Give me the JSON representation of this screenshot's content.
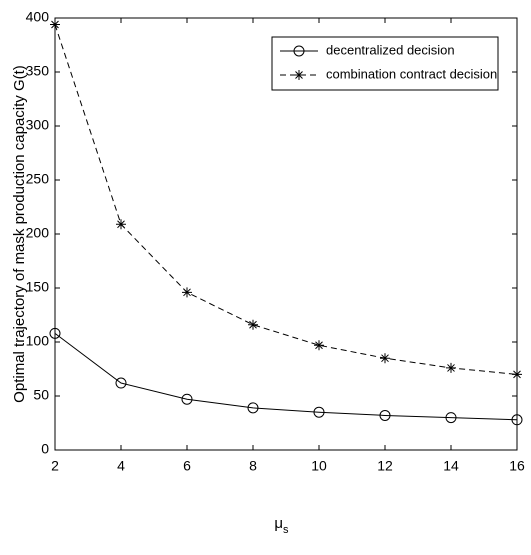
{
  "chart_data": {
    "type": "line",
    "ylabel": "Optimal trajectory of mask production capacity G(t)",
    "xlabel": "μ",
    "xlabel_sub": "s",
    "x": [
      2,
      4,
      6,
      8,
      10,
      12,
      14,
      16
    ],
    "series": [
      {
        "name": "decentralized decision",
        "color": "#000000",
        "linestyle": "solid",
        "marker": "circle",
        "values": [
          108,
          62,
          47,
          39,
          35,
          32,
          30,
          28
        ]
      },
      {
        "name": "combination contract decision",
        "color": "#000000",
        "linestyle": "dashed",
        "marker": "asterisk",
        "values": [
          394,
          209,
          146,
          116,
          97,
          85,
          76,
          70
        ]
      }
    ],
    "xlim": [
      2,
      16
    ],
    "xticks": [
      2,
      4,
      6,
      8,
      10,
      12,
      14,
      16
    ],
    "ylim": [
      0,
      400
    ],
    "yticks": [
      0,
      50,
      100,
      150,
      200,
      250,
      300,
      350,
      400
    ],
    "grid": false,
    "legend": "upper right"
  }
}
